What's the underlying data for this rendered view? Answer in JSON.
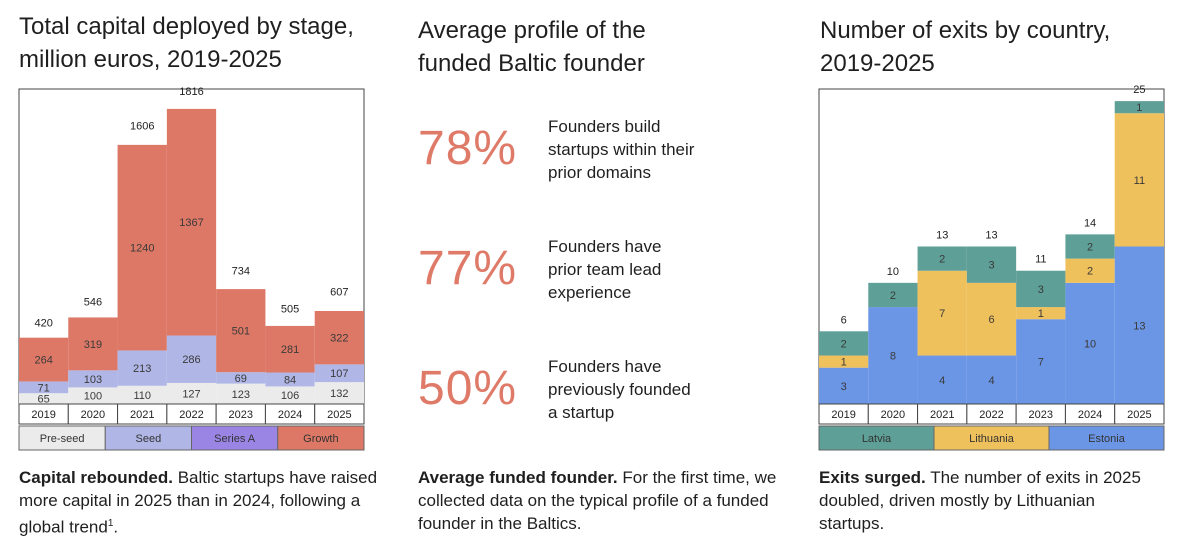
{
  "panels": {
    "capital": {
      "title": "Total capital deployed by stage,\nmillion euros, 2019-2025",
      "caption_bold": "Capital rebounded.",
      "caption_text": "Baltic startups have raised more capital in 2025 than in 2024, following a global trend",
      "caption_sup": "1",
      "caption_end": "."
    },
    "profile": {
      "title": "Average profile of the\nfunded Baltic founder",
      "caption_bold": "Average funded founder.",
      "caption_text": "For the first time, we collected data on the typical profile of a funded founder in the Baltics.",
      "stats": [
        {
          "value": "78%",
          "text": "Founders build\nstartups within their\nprior domains"
        },
        {
          "value": "77%",
          "text": "Founders have\nprior team lead\nexperience"
        },
        {
          "value": "50%",
          "text": "Founders have\npreviously founded\na startup"
        }
      ]
    },
    "exits": {
      "title": "Number of exits by country,\n2019-2025",
      "caption_bold": "Exits surged.",
      "caption_text": "The number of exits in 2025 doubled, driven mostly by Lithuanian startups."
    }
  },
  "chart_data": [
    {
      "type": "bar",
      "stacked": true,
      "categories": [
        "2019",
        "2020",
        "2021",
        "2022",
        "2023",
        "2024",
        "2025"
      ],
      "totals": [
        420,
        546,
        1606,
        1816,
        734,
        505,
        607
      ],
      "series": [
        {
          "name": "Pre-seed",
          "color": "#ebebeb",
          "values": [
            65,
            100,
            110,
            127,
            123,
            106,
            132
          ]
        },
        {
          "name": "Seed",
          "color": "#b0b7e6",
          "values": [
            71,
            103,
            213,
            286,
            69,
            84,
            107
          ]
        },
        {
          "name": "Series A",
          "color": "#9a85e4",
          "values": [
            null,
            null,
            null,
            null,
            null,
            null,
            null
          ]
        },
        {
          "name": "Growth",
          "color": "#dd7866",
          "values": [
            264,
            319,
            1240,
            1367,
            501,
            281,
            322
          ]
        }
      ],
      "ylim": [
        0,
        1900
      ]
    },
    {
      "type": "bar",
      "stacked": true,
      "categories": [
        "2019",
        "2020",
        "2021",
        "2022",
        "2023",
        "2024",
        "2025"
      ],
      "totals": [
        6,
        10,
        13,
        13,
        11,
        14,
        25
      ],
      "series": [
        {
          "name": "Estonia",
          "color": "#6b96e5",
          "values": [
            3,
            8,
            4,
            4,
            7,
            10,
            13
          ]
        },
        {
          "name": "Lithuania",
          "color": "#efc15d",
          "values": [
            1,
            null,
            7,
            6,
            1,
            2,
            11
          ]
        },
        {
          "name": "Latvia",
          "color": "#5e9f97",
          "values": [
            2,
            2,
            2,
            3,
            3,
            2,
            1
          ]
        }
      ],
      "ylim": [
        0,
        26
      ]
    }
  ]
}
